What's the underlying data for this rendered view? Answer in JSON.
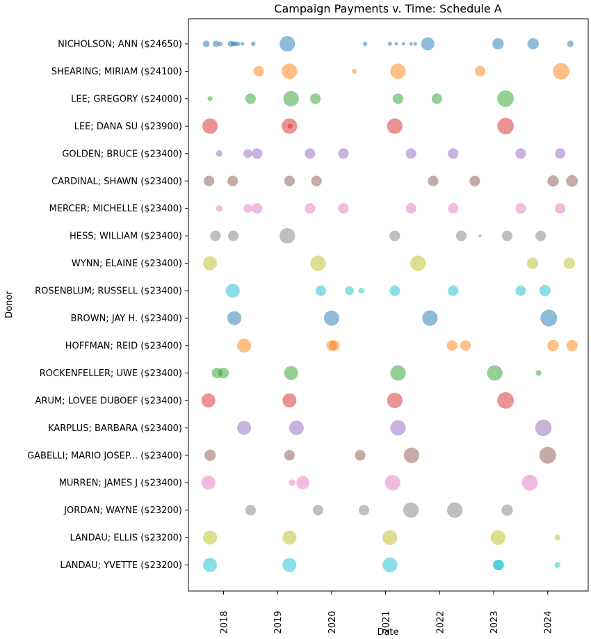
{
  "chart_data": {
    "type": "scatter",
    "title": "Campaign Payments v. Time: Schedule A",
    "xlabel": "Date",
    "ylabel": "Donor",
    "xlim": [
      2017.35,
      2024.75
    ],
    "x_ticks": [
      "2018",
      "2019",
      "2020",
      "2021",
      "2022",
      "2023",
      "2024"
    ],
    "grid": false,
    "legend": "none",
    "colors": [
      "#1f77b4",
      "#ff7f0e",
      "#2ca02c",
      "#d62728",
      "#9467bd",
      "#8c564b",
      "#e377c2",
      "#7f7f7f",
      "#bcbd22",
      "#17becf"
    ],
    "series": [
      {
        "label": "NICHOLSON; ANN ($24650)",
        "points": [
          {
            "date": 2017.68,
            "amount": 500
          },
          {
            "date": 2017.86,
            "amount": 500
          },
          {
            "date": 2017.94,
            "amount": 250
          },
          {
            "date": 2018.13,
            "amount": 400
          },
          {
            "date": 2018.18,
            "amount": 300
          },
          {
            "date": 2018.22,
            "amount": 250
          },
          {
            "date": 2018.27,
            "amount": 200
          },
          {
            "date": 2018.35,
            "amount": 150
          },
          {
            "date": 2018.55,
            "amount": 250
          },
          {
            "date": 2019.18,
            "amount": 2800
          },
          {
            "date": 2020.62,
            "amount": 250
          },
          {
            "date": 2021.08,
            "amount": 200
          },
          {
            "date": 2021.2,
            "amount": 150
          },
          {
            "date": 2021.33,
            "amount": 150
          },
          {
            "date": 2021.47,
            "amount": 150
          },
          {
            "date": 2021.55,
            "amount": 150
          },
          {
            "date": 2021.78,
            "amount": 2000
          },
          {
            "date": 2023.08,
            "amount": 1500
          },
          {
            "date": 2023.73,
            "amount": 1500
          },
          {
            "date": 2024.42,
            "amount": 500
          }
        ]
      },
      {
        "label": "SHEARING; MIRIAM ($24100)",
        "points": [
          {
            "date": 2018.65,
            "amount": 1300
          },
          {
            "date": 2019.22,
            "amount": 2800
          },
          {
            "date": 2020.42,
            "amount": 300
          },
          {
            "date": 2021.23,
            "amount": 2800
          },
          {
            "date": 2022.75,
            "amount": 1300
          },
          {
            "date": 2024.25,
            "amount": 3200
          }
        ]
      },
      {
        "label": "LEE; GREGORY ($24000)",
        "points": [
          {
            "date": 2017.75,
            "amount": 300
          },
          {
            "date": 2018.5,
            "amount": 1300
          },
          {
            "date": 2019.25,
            "amount": 2800
          },
          {
            "date": 2019.7,
            "amount": 1300
          },
          {
            "date": 2021.23,
            "amount": 1300
          },
          {
            "date": 2021.95,
            "amount": 1300
          },
          {
            "date": 2023.22,
            "amount": 3200
          }
        ]
      },
      {
        "label": "LEE; DANA SU ($23900)",
        "points": [
          {
            "date": 2017.75,
            "amount": 2800
          },
          {
            "date": 2019.22,
            "amount": 2800
          },
          {
            "date": 2019.23,
            "amount": 300
          },
          {
            "date": 2021.17,
            "amount": 2800
          },
          {
            "date": 2023.22,
            "amount": 3200
          }
        ]
      },
      {
        "label": "GOLDEN; BRUCE ($23400)",
        "points": [
          {
            "date": 2017.92,
            "amount": 500
          },
          {
            "date": 2018.45,
            "amount": 900
          },
          {
            "date": 2018.62,
            "amount": 1300
          },
          {
            "date": 2019.6,
            "amount": 1300
          },
          {
            "date": 2020.22,
            "amount": 1300
          },
          {
            "date": 2021.47,
            "amount": 1300
          },
          {
            "date": 2022.25,
            "amount": 1300
          },
          {
            "date": 2023.5,
            "amount": 1300
          },
          {
            "date": 2024.23,
            "amount": 1300
          }
        ]
      },
      {
        "label": "CARDINAL; SHAWN ($23400)",
        "points": [
          {
            "date": 2017.73,
            "amount": 1300
          },
          {
            "date": 2018.17,
            "amount": 1300
          },
          {
            "date": 2019.22,
            "amount": 1300
          },
          {
            "date": 2019.72,
            "amount": 1300
          },
          {
            "date": 2021.88,
            "amount": 1300
          },
          {
            "date": 2022.65,
            "amount": 1300
          },
          {
            "date": 2024.1,
            "amount": 1500
          },
          {
            "date": 2024.45,
            "amount": 1600
          }
        ]
      },
      {
        "label": "MERCER; MICHELLE ($23400)",
        "points": [
          {
            "date": 2017.92,
            "amount": 500
          },
          {
            "date": 2018.45,
            "amount": 900
          },
          {
            "date": 2018.62,
            "amount": 1300
          },
          {
            "date": 2019.6,
            "amount": 1300
          },
          {
            "date": 2020.22,
            "amount": 1300
          },
          {
            "date": 2021.47,
            "amount": 1300
          },
          {
            "date": 2022.25,
            "amount": 1300
          },
          {
            "date": 2023.5,
            "amount": 1300
          },
          {
            "date": 2024.23,
            "amount": 1300
          }
        ]
      },
      {
        "label": "HESS; WILLIAM ($23400)",
        "points": [
          {
            "date": 2017.85,
            "amount": 1300
          },
          {
            "date": 2018.18,
            "amount": 1300
          },
          {
            "date": 2019.18,
            "amount": 2800
          },
          {
            "date": 2021.17,
            "amount": 1300
          },
          {
            "date": 2022.4,
            "amount": 1300
          },
          {
            "date": 2022.75,
            "amount": 100
          },
          {
            "date": 2023.25,
            "amount": 1300
          },
          {
            "date": 2023.87,
            "amount": 1300
          }
        ]
      },
      {
        "label": "WYNN; ELAINE ($23400)",
        "points": [
          {
            "date": 2017.75,
            "amount": 2300
          },
          {
            "date": 2019.75,
            "amount": 2800
          },
          {
            "date": 2021.6,
            "amount": 2800
          },
          {
            "date": 2023.72,
            "amount": 1500
          },
          {
            "date": 2024.4,
            "amount": 1500
          }
        ]
      },
      {
        "label": "ROSENBLUM; RUSSELL ($23400)",
        "points": [
          {
            "date": 2018.17,
            "amount": 2300
          },
          {
            "date": 2019.8,
            "amount": 1300
          },
          {
            "date": 2020.33,
            "amount": 900
          },
          {
            "date": 2020.55,
            "amount": 400
          },
          {
            "date": 2021.17,
            "amount": 1300
          },
          {
            "date": 2022.25,
            "amount": 1300
          },
          {
            "date": 2023.5,
            "amount": 1300
          },
          {
            "date": 2023.95,
            "amount": 1500
          }
        ]
      },
      {
        "label": "BROWN; JAY H. ($23400)",
        "points": [
          {
            "date": 2018.2,
            "amount": 2300
          },
          {
            "date": 2020.0,
            "amount": 2700
          },
          {
            "date": 2021.82,
            "amount": 2800
          },
          {
            "date": 2024.02,
            "amount": 3300
          }
        ]
      },
      {
        "label": "HOFFMAN; REID ($23400)",
        "points": [
          {
            "date": 2018.38,
            "amount": 2300
          },
          {
            "date": 2020.0,
            "amount": 1300
          },
          {
            "date": 2020.05,
            "amount": 1300
          },
          {
            "date": 2022.23,
            "amount": 1300
          },
          {
            "date": 2022.48,
            "amount": 1300
          },
          {
            "date": 2024.1,
            "amount": 1500
          },
          {
            "date": 2024.45,
            "amount": 1500
          }
        ]
      },
      {
        "label": "ROCKENFELLER; UWE ($23400)",
        "points": [
          {
            "date": 2017.88,
            "amount": 1300
          },
          {
            "date": 2018.0,
            "amount": 1300
          },
          {
            "date": 2019.25,
            "amount": 2300
          },
          {
            "date": 2021.23,
            "amount": 2800
          },
          {
            "date": 2023.02,
            "amount": 2800
          },
          {
            "date": 2023.83,
            "amount": 400
          }
        ]
      },
      {
        "label": "ARUM; LOVEE DUBOEF ($23400)",
        "points": [
          {
            "date": 2017.72,
            "amount": 2300
          },
          {
            "date": 2019.22,
            "amount": 2300
          },
          {
            "date": 2021.17,
            "amount": 2800
          },
          {
            "date": 2023.22,
            "amount": 3200
          }
        ]
      },
      {
        "label": "KARPLUS; BARBARA ($23400)",
        "points": [
          {
            "date": 2018.38,
            "amount": 2300
          },
          {
            "date": 2019.35,
            "amount": 2500
          },
          {
            "date": 2021.23,
            "amount": 2800
          },
          {
            "date": 2023.92,
            "amount": 3200
          }
        ]
      },
      {
        "label": "GABELLI; MARIO JOSEP... ($23400)",
        "points": [
          {
            "date": 2017.75,
            "amount": 1500
          },
          {
            "date": 2019.22,
            "amount": 1300
          },
          {
            "date": 2020.53,
            "amount": 1300
          },
          {
            "date": 2021.48,
            "amount": 2800
          },
          {
            "date": 2024.0,
            "amount": 3300
          }
        ]
      },
      {
        "label": "MURREN; JAMES J ($23400)",
        "points": [
          {
            "date": 2017.72,
            "amount": 2300
          },
          {
            "date": 2019.27,
            "amount": 500
          },
          {
            "date": 2019.47,
            "amount": 2000
          },
          {
            "date": 2021.13,
            "amount": 2800
          },
          {
            "date": 2023.67,
            "amount": 3000
          }
        ]
      },
      {
        "label": "JORDAN; WAYNE ($23200)",
        "points": [
          {
            "date": 2018.5,
            "amount": 1300
          },
          {
            "date": 2019.75,
            "amount": 1300
          },
          {
            "date": 2020.6,
            "amount": 1300
          },
          {
            "date": 2021.47,
            "amount": 2800
          },
          {
            "date": 2022.28,
            "amount": 2800
          },
          {
            "date": 2023.25,
            "amount": 1500
          }
        ]
      },
      {
        "label": "LANDAU; ELLIS ($23200)",
        "points": [
          {
            "date": 2017.75,
            "amount": 2300
          },
          {
            "date": 2019.22,
            "amount": 2300
          },
          {
            "date": 2021.08,
            "amount": 2600
          },
          {
            "date": 2023.08,
            "amount": 2600
          },
          {
            "date": 2024.18,
            "amount": 400
          }
        ]
      },
      {
        "label": "LANDAU; YVETTE ($23200)",
        "points": [
          {
            "date": 2017.75,
            "amount": 2300
          },
          {
            "date": 2019.22,
            "amount": 2300
          },
          {
            "date": 2021.08,
            "amount": 2600
          },
          {
            "date": 2023.08,
            "amount": 1300
          },
          {
            "date": 2023.1,
            "amount": 1300
          },
          {
            "date": 2024.18,
            "amount": 400
          }
        ]
      }
    ]
  }
}
